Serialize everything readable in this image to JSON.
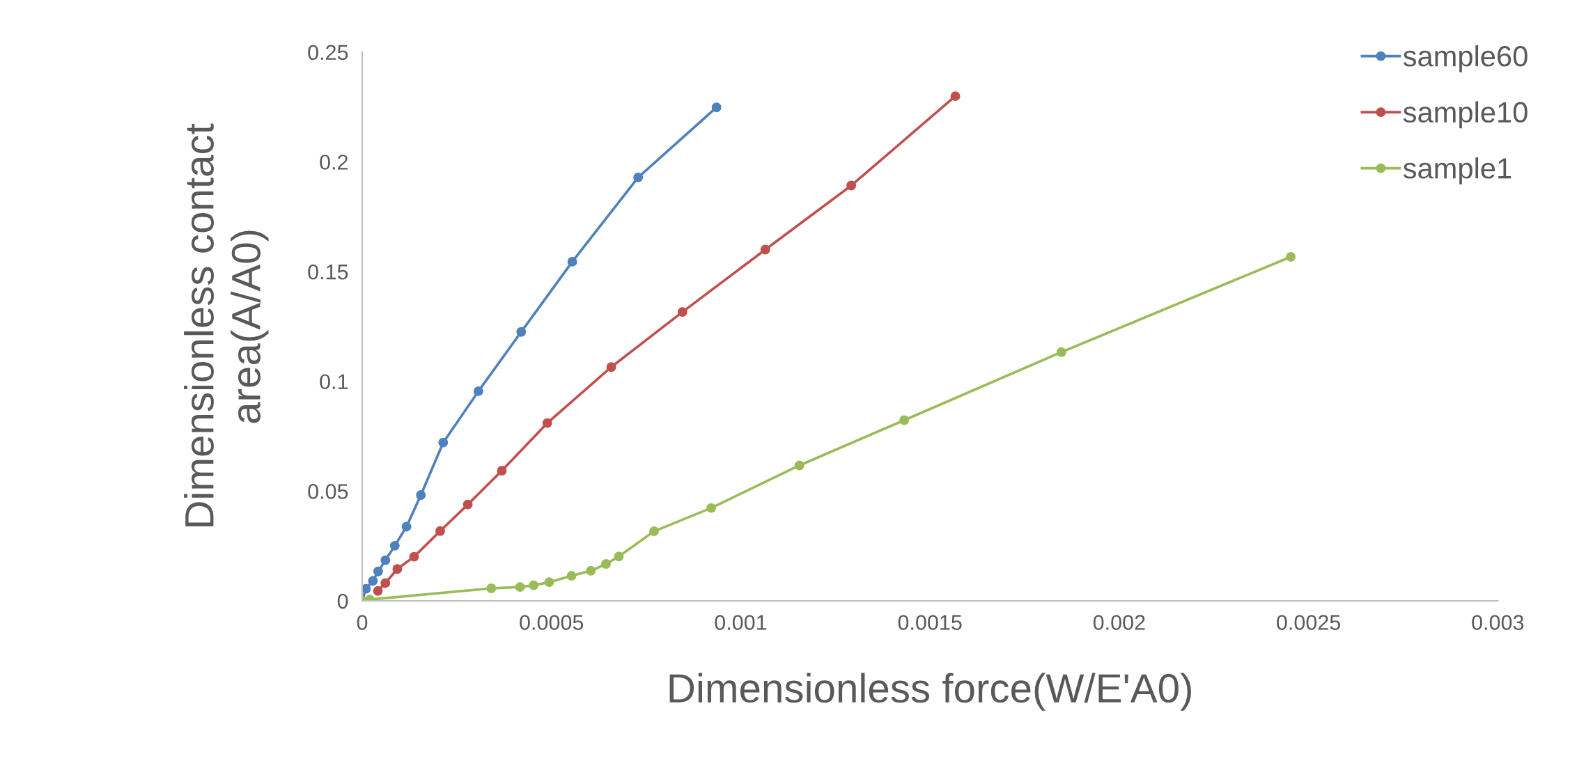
{
  "chart_data": {
    "type": "line",
    "xlabel": "Dimensionless force(W/E'A0)",
    "ylabel": "Dimensionless contact\narea(A/A0)",
    "xlim": [
      0,
      0.003
    ],
    "xticks": [
      0,
      0.0005,
      0.001,
      0.0015,
      0.002,
      0.0025,
      0.003
    ],
    "ylim": [
      0,
      0.25
    ],
    "yticks": [
      0,
      0.05,
      0.1,
      0.15,
      0.2,
      0.25
    ],
    "grid": false,
    "legend": "top right",
    "marker": "circle",
    "line_style": "solid",
    "series": [
      {
        "name": "sample60",
        "color": "#4f81bd",
        "x": [
          0,
          9.9e-06,
          2.83e-05,
          4.21e-05,
          6.12e-05,
          8.61e-05,
          0.000117,
          0.000155,
          0.000214,
          0.000307,
          0.00042,
          0.000555,
          0.000729,
          0.000936
        ],
        "values": [
          0,
          0.0055,
          0.0091,
          0.0134,
          0.0185,
          0.0251,
          0.0338,
          0.0482,
          0.0721,
          0.0955,
          0.1225,
          0.1545,
          0.1929,
          0.2248
        ]
      },
      {
        "name": "sample10",
        "color": "#c0504d",
        "x": [
          4.14e-05,
          6.12e-05,
          9.27e-05,
          0.000137,
          0.000206,
          0.000279,
          0.000369,
          0.000489,
          0.000658,
          0.000846,
          0.001065,
          0.001292,
          0.001567
        ],
        "values": [
          0.0045,
          0.0081,
          0.0145,
          0.0201,
          0.0318,
          0.0439,
          0.0593,
          0.081,
          0.1065,
          0.1316,
          0.16,
          0.1892,
          0.2299
        ]
      },
      {
        "name": "sample1",
        "color": "#9bbb59",
        "x": [
          0,
          1.99e-05,
          0.000341,
          0.000417,
          0.000453,
          0.000494,
          0.000553,
          0.000604,
          0.000644,
          0.000678,
          0.000771,
          0.000922,
          0.001155,
          0.001432,
          0.001847,
          0.002453
        ],
        "values": [
          0,
          0.0006,
          0.0057,
          0.0063,
          0.0071,
          0.0085,
          0.0114,
          0.0137,
          0.0168,
          0.0202,
          0.0317,
          0.0423,
          0.0617,
          0.0823,
          0.1133,
          0.1567
        ]
      }
    ]
  }
}
